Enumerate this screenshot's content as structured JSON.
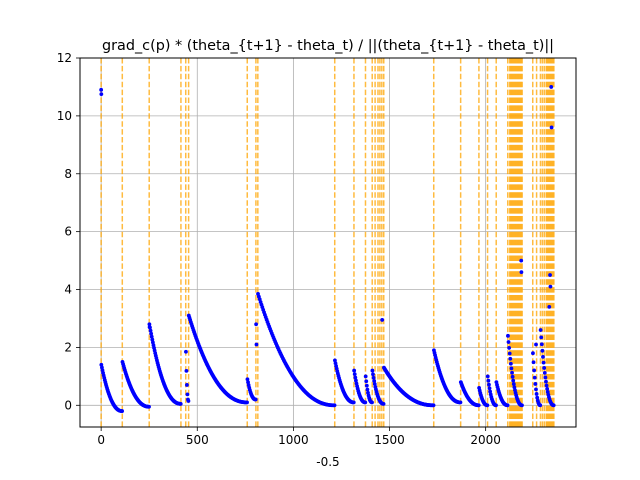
{
  "chart_data": {
    "type": "scatter",
    "title": "grad_c(p) * (theta_{t+1} - theta_t) / ||(theta_{t+1} - theta_t)||",
    "xlabel": "-0.5",
    "ylabel": "",
    "xlim": [
      -110,
      2470
    ],
    "ylim": [
      -0.75,
      12
    ],
    "xticks": [
      0,
      500,
      1000,
      1500,
      2000
    ],
    "yticks": [
      0,
      2,
      4,
      6,
      8,
      10,
      12
    ],
    "grid": true,
    "colors": {
      "points": "#0000ff",
      "vlines": "#ffa500"
    },
    "vlines": [
      0,
      110,
      250,
      415,
      440,
      455,
      760,
      805,
      815,
      1215,
      1315,
      1375,
      1410,
      1425,
      1440,
      1450,
      1460,
      1470,
      1730,
      1870,
      1965,
      2010,
      2055,
      2115,
      2125,
      2130,
      2135,
      2140,
      2145,
      2150,
      2155,
      2160,
      2165,
      2170,
      2175,
      2180,
      2185,
      2190,
      2245,
      2265,
      2285,
      2295,
      2305,
      2315,
      2320,
      2325,
      2330,
      2335,
      2340,
      2345,
      2350,
      2355
    ],
    "segments": [
      {
        "x0": 0,
        "x1": 110,
        "peak": 1.4,
        "end": -0.2,
        "outliers": [
          [
            0,
            10.9
          ],
          [
            1,
            10.75
          ]
        ]
      },
      {
        "x0": 110,
        "x1": 250,
        "peak": 1.5,
        "end": -0.05,
        "outliers": []
      },
      {
        "x0": 250,
        "x1": 415,
        "peak": 2.8,
        "end": 0.05,
        "outliers": [
          [
            252,
            2.7
          ]
        ]
      },
      {
        "x0": 440,
        "x1": 455,
        "peak": 1.85,
        "end": 0.15,
        "outliers": []
      },
      {
        "x0": 455,
        "x1": 760,
        "peak": 3.1,
        "end": 0.1,
        "outliers": []
      },
      {
        "x0": 760,
        "x1": 805,
        "peak": 0.9,
        "end": 0.2,
        "outliers": []
      },
      {
        "x0": 815,
        "x1": 1215,
        "peak": 3.85,
        "end": 0.0,
        "outliers": [
          [
            806,
            2.8
          ],
          [
            808,
            2.1
          ]
        ]
      },
      {
        "x0": 1215,
        "x1": 1315,
        "peak": 1.55,
        "end": 0.1,
        "outliers": []
      },
      {
        "x0": 1315,
        "x1": 1375,
        "peak": 1.2,
        "end": 0.1,
        "outliers": []
      },
      {
        "x0": 1375,
        "x1": 1410,
        "peak": 1.0,
        "end": 0.1,
        "outliers": []
      },
      {
        "x0": 1410,
        "x1": 1470,
        "peak": 1.2,
        "end": 0.05,
        "outliers": [
          [
            1462,
            2.95
          ]
        ]
      },
      {
        "x0": 1470,
        "x1": 1730,
        "peak": 1.3,
        "end": 0.0,
        "outliers": []
      },
      {
        "x0": 1730,
        "x1": 1870,
        "peak": 1.9,
        "end": 0.1,
        "outliers": []
      },
      {
        "x0": 1870,
        "x1": 1965,
        "peak": 0.8,
        "end": 0.0,
        "outliers": []
      },
      {
        "x0": 1965,
        "x1": 2010,
        "peak": 0.6,
        "end": 0.0,
        "outliers": []
      },
      {
        "x0": 2010,
        "x1": 2055,
        "peak": 1.0,
        "end": 0.0,
        "outliers": []
      },
      {
        "x0": 2055,
        "x1": 2115,
        "peak": 0.8,
        "end": 0.0,
        "outliers": []
      },
      {
        "x0": 2115,
        "x1": 2190,
        "peak": 2.4,
        "end": 0.0,
        "outliers": [
          [
            2185,
            5.0
          ],
          [
            2186,
            4.6
          ]
        ]
      },
      {
        "x0": 2245,
        "x1": 2285,
        "peak": 1.8,
        "end": 0.0,
        "outliers": [
          [
            2262,
            2.1
          ]
        ]
      },
      {
        "x0": 2285,
        "x1": 2355,
        "peak": 2.6,
        "end": 0.0,
        "outliers": [
          [
            2341,
            11.0
          ],
          [
            2343,
            9.6
          ],
          [
            2335,
            4.5
          ],
          [
            2337,
            4.1
          ],
          [
            2331,
            3.4
          ]
        ]
      }
    ]
  }
}
